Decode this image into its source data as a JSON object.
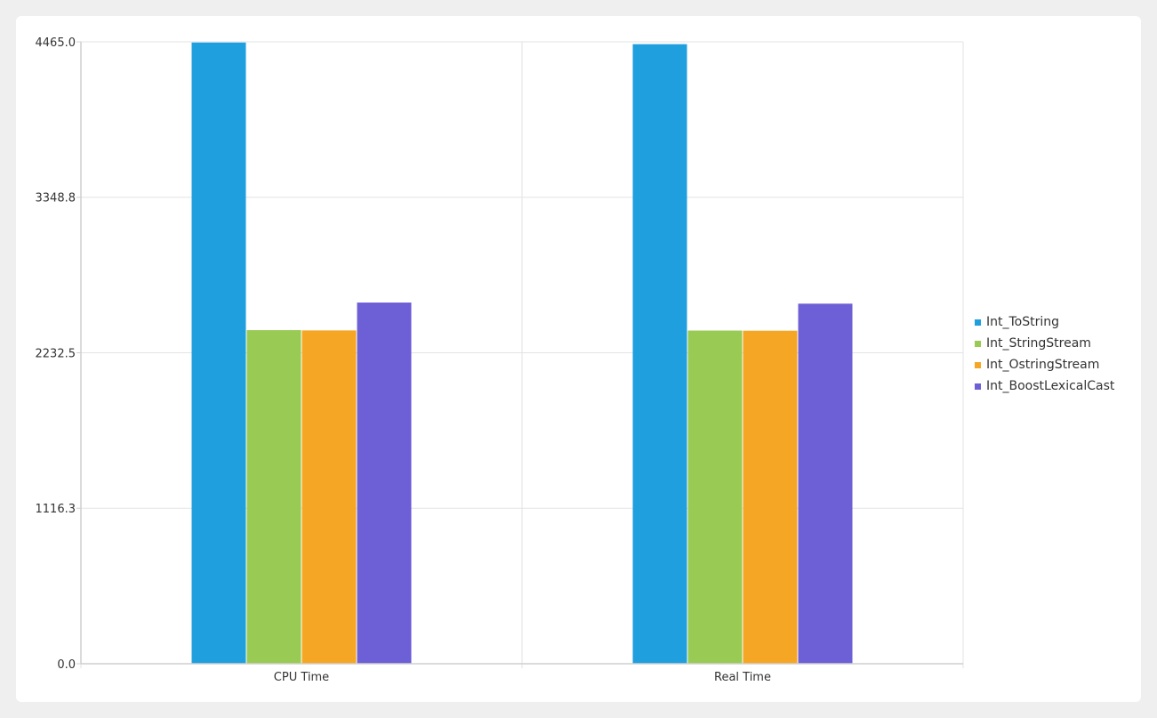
{
  "chart_data": {
    "type": "bar",
    "categories": [
      "CPU Time",
      "Real Time"
    ],
    "series": [
      {
        "name": "Int_ToString",
        "color": "#209fdf",
        "values": [
          4460,
          4448
        ]
      },
      {
        "name": "Int_StringStream",
        "color": "#99ca53",
        "values": [
          2395,
          2392
        ]
      },
      {
        "name": "Int_OstringStream",
        "color": "#f6a625",
        "values": [
          2393,
          2391
        ]
      },
      {
        "name": "Int_BoostLexicalCast",
        "color": "#6d5fd5",
        "values": [
          2593,
          2585
        ]
      }
    ],
    "yticks": [
      "0.0",
      "1116.3",
      "2232.5",
      "3348.8",
      "4465.0"
    ],
    "ylim": [
      0,
      4465
    ],
    "grid": true,
    "legend_position": "right"
  }
}
